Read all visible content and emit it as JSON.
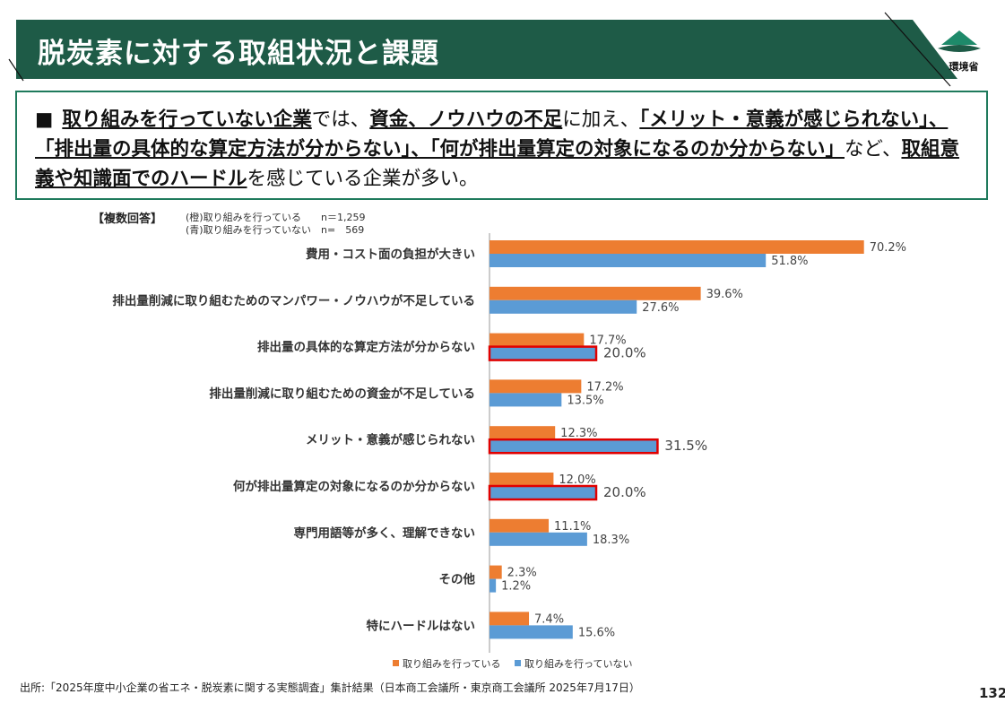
{
  "header": {
    "title": "脱炭素に対する取組状況と課題",
    "ministry_logo_text": "環境省"
  },
  "summary": {
    "bullet": "■",
    "parts": [
      {
        "text": "取り組みを行っていない企業",
        "bold": true
      },
      {
        "text": "では、",
        "bold": false
      },
      {
        "text": "資金、ノウハウの不足",
        "bold": true
      },
      {
        "text": "に加え、",
        "bold": false
      },
      {
        "text": "「メリット・意義が感じられない」、「排出量の具体的な算定方法が分からない」、「何が排出量算定の対象になるのか分からない」",
        "bold": true
      },
      {
        "text": "など、",
        "bold": false
      },
      {
        "text": "取組意義や知識面でのハードル",
        "bold": true
      },
      {
        "text": "を感じている企業が多い。",
        "bold": false
      }
    ]
  },
  "legend_head": {
    "label": "【複数回答】",
    "line1": "(橙)取り組みを行っている　　n＝1,259",
    "line2": "(青)取り組みを行っていない　n=　569"
  },
  "colors": {
    "banner": "#1e5b47",
    "box_border": "#1f7a5c",
    "orange": "#ed7d31",
    "blue": "#5b9bd5",
    "highlight": "#e00000"
  },
  "chart_data": {
    "type": "bar",
    "orientation": "horizontal",
    "categories": [
      "費用・コスト面の負担が大きい",
      "排出量削減に取り組むためのマンパワー・ノウハウが不足している",
      "排出量の具体的な算定方法が分からない",
      "排出量削減に取り組むための資金が不足している",
      "メリット・意義が感じられない",
      "何が排出量算定の対象になるのか分からない",
      "専門用語等が多く、理解できない",
      "その他",
      "特にハードルはない"
    ],
    "series": [
      {
        "name": "取り組みを行っている",
        "color": "#ed7d31",
        "values": [
          70.2,
          39.6,
          17.7,
          17.2,
          12.3,
          12.0,
          11.1,
          2.3,
          7.4
        ]
      },
      {
        "name": "取り組みを行っていない",
        "color": "#5b9bd5",
        "values": [
          51.8,
          27.6,
          20.0,
          13.5,
          31.5,
          20.0,
          18.3,
          1.2,
          15.6
        ]
      }
    ],
    "value_labels": [
      [
        "70.2%",
        "39.6%",
        "17.7%",
        "17.2%",
        "12.3%",
        "12.0%",
        "11.1%",
        "2.3%",
        "7.4%"
      ],
      [
        "51.8%",
        "27.6%",
        "20.0%",
        "13.5%",
        "31.5%",
        "20.0%",
        "18.3%",
        "1.2%",
        "15.6%"
      ]
    ],
    "highlighted": [
      2,
      4,
      5
    ],
    "xlim": [
      0,
      100
    ],
    "legend_position": "bottom-right"
  },
  "source": "出所:「2025年度中小企業の省エネ・脱炭素に関する実態調査」集計結果（日本商工会議所・東京商工会議所 2025年7月17日）",
  "page_number": "132"
}
